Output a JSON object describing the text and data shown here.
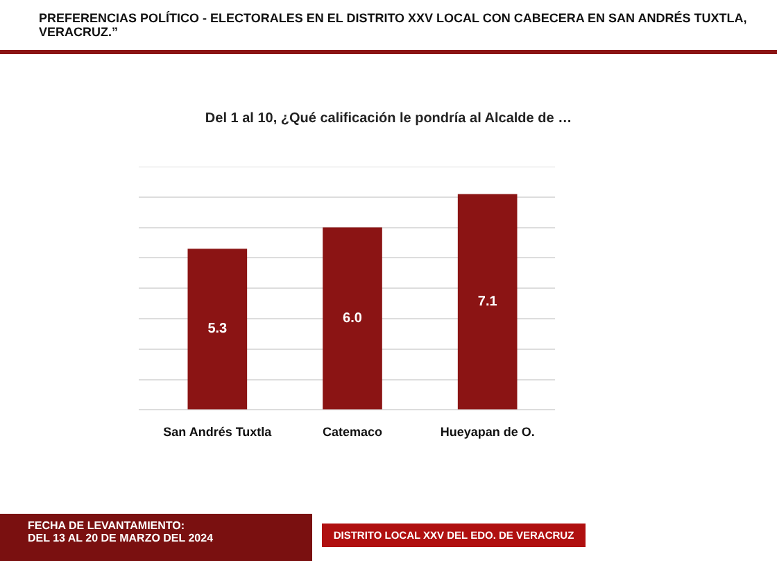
{
  "chart_data": {
    "type": "bar",
    "title": "PREFERENCIAS POLÍTICO - ELECTORALES EN EL DISTRITO XXV LOCAL CON CABECERA EN SAN ANDRÉS TUXTLA, VERACRUZ.”",
    "subtitle": "Del 1 al 10, ¿Qué calificación le pondría al Alcalde de …",
    "categories": [
      "San Andrés Tuxtla",
      "Catemaco",
      "Hueyapan de O."
    ],
    "values": [
      5.3,
      6.0,
      7.1
    ],
    "value_labels": [
      "5.3",
      "6.0",
      "7.1"
    ],
    "color": "#8b1414",
    "grid": "y",
    "tick_labels": "x",
    "legend": false,
    "annotations": [
      "FECHA DE LEVANTAMIENTO:\nDEL 13 AL 20 DE MARZO DEL 2024",
      "DISTRITO LOCAL XXV DEL EDO. DE VERACRUZ"
    ]
  }
}
